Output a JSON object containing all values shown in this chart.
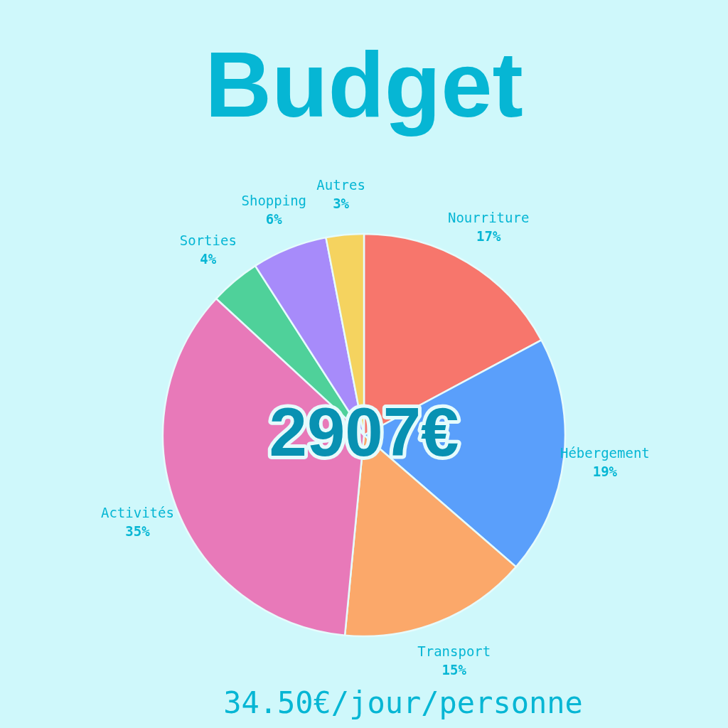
{
  "chart_data": {
    "type": "pie",
    "title": "Budget",
    "categories": [
      "Nourriture",
      "Hébergement",
      "Transport",
      "Activités",
      "Sorties",
      "Shopping",
      "Autres"
    ],
    "values": [
      17,
      19,
      15,
      35,
      4,
      6,
      3
    ],
    "value_labels": [
      "17%",
      "19%",
      "15%",
      "35%",
      "4%",
      "6%",
      "3%"
    ],
    "colors": [
      "#f7766c",
      "#5a9ffb",
      "#fba86a",
      "#e879b9",
      "#4fd19a",
      "#a78bfa",
      "#f5d35f"
    ],
    "annotations": [
      "2907€",
      "34.50€/jour/personne"
    ],
    "legend": false
  }
}
